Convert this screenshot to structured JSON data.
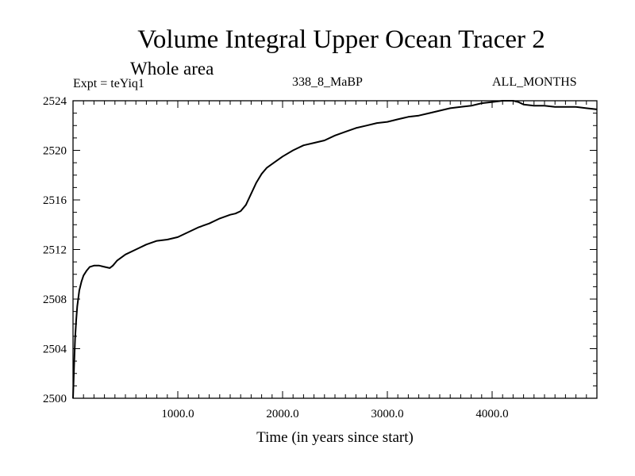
{
  "chart_data": {
    "type": "line",
    "title": "Volume Integral Upper Ocean Tracer 2",
    "subtitle": "Whole area",
    "experiment_label": "Expt = teYiq1",
    "period_label": "338_8_MaBP",
    "months_label": "ALL_MONTHS",
    "xlabel": "Time (in years since start)",
    "ylabel": "",
    "xlim": [
      0,
      5000
    ],
    "ylim": [
      2500,
      2524
    ],
    "x_ticks": [
      1000,
      2000,
      3000,
      4000
    ],
    "x_tick_labels": [
      "1000.0",
      "2000.0",
      "3000.0",
      "4000.0"
    ],
    "y_ticks": [
      2500,
      2504,
      2508,
      2512,
      2516,
      2520,
      2524
    ],
    "y_tick_labels": [
      "2500",
      "2504",
      "2508",
      "2512",
      "2516",
      "2520",
      "2524"
    ],
    "series": [
      {
        "name": "Upper Ocean Tracer 2",
        "x": [
          0,
          10,
          20,
          30,
          40,
          60,
          80,
          100,
          130,
          160,
          200,
          250,
          300,
          350,
          380,
          420,
          500,
          600,
          700,
          800,
          900,
          1000,
          1100,
          1200,
          1300,
          1400,
          1500,
          1550,
          1600,
          1650,
          1700,
          1750,
          1800,
          1850,
          1900,
          2000,
          2100,
          2200,
          2300,
          2400,
          2500,
          2600,
          2700,
          2800,
          2900,
          3000,
          3100,
          3200,
          3300,
          3400,
          3500,
          3600,
          3700,
          3800,
          3900,
          4000,
          4100,
          4200,
          4250,
          4300,
          4400,
          4500,
          4600,
          4700,
          4800,
          4900,
          5000
        ],
        "y": [
          2500.0,
          2502.5,
          2504.8,
          2506.3,
          2507.4,
          2508.7,
          2509.4,
          2509.9,
          2510.3,
          2510.6,
          2510.7,
          2510.7,
          2510.6,
          2510.5,
          2510.7,
          2511.1,
          2511.6,
          2512.0,
          2512.4,
          2512.7,
          2512.8,
          2513.0,
          2513.4,
          2513.8,
          2514.1,
          2514.5,
          2514.8,
          2514.9,
          2515.1,
          2515.6,
          2516.5,
          2517.4,
          2518.1,
          2518.6,
          2518.9,
          2519.5,
          2520.0,
          2520.4,
          2520.6,
          2520.8,
          2521.2,
          2521.5,
          2521.8,
          2522.0,
          2522.2,
          2522.3,
          2522.5,
          2522.7,
          2522.8,
          2523.0,
          2523.2,
          2523.4,
          2523.5,
          2523.6,
          2523.8,
          2523.9,
          2524.0,
          2524.0,
          2523.9,
          2523.7,
          2523.6,
          2523.6,
          2523.5,
          2523.5,
          2523.5,
          2523.4,
          2523.3
        ]
      }
    ]
  }
}
